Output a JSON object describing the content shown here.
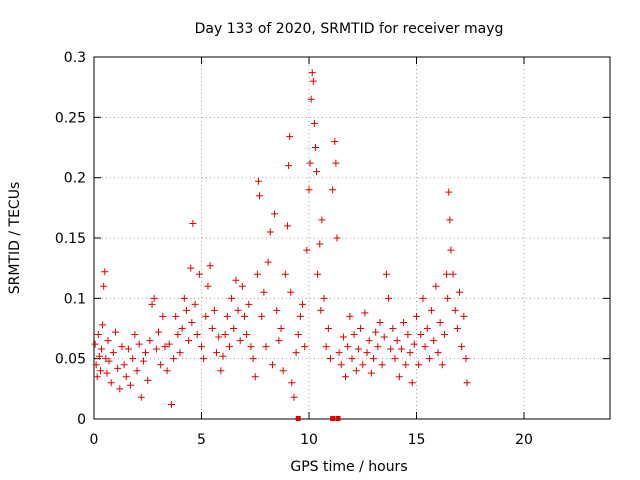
{
  "chart_data": {
    "type": "scatter",
    "title": "Day 133 of 2020, SRMTID for receiver mayg",
    "xlabel": "GPS time / hours",
    "ylabel": "SRMTID / TECUs",
    "xlim": [
      0,
      24
    ],
    "ylim": [
      0,
      0.3
    ],
    "xticks": [
      0,
      5,
      10,
      15,
      20
    ],
    "yticks": [
      0,
      0.05,
      0.1,
      0.15,
      0.2,
      0.25,
      0.3
    ],
    "grid": true,
    "marker": "+",
    "marker_color": "#e00000",
    "data_span_hours": [
      0,
      17.4
    ],
    "peaks": [
      {
        "x": 4.6,
        "y": 0.162
      },
      {
        "x": 7.6,
        "y": 0.197
      },
      {
        "x": 9.1,
        "y": 0.234
      },
      {
        "x": 10.2,
        "y": 0.287
      },
      {
        "x": 11.2,
        "y": 0.23
      },
      {
        "x": 16.5,
        "y": 0.188
      }
    ],
    "zero_markers_x": [
      9.5,
      11.1,
      11.35
    ],
    "series": [
      {
        "name": "SRMTID",
        "color": "#e00000",
        "points": [
          [
            0.05,
            0.062
          ],
          [
            0.1,
            0.045
          ],
          [
            0.15,
            0.035
          ],
          [
            0.2,
            0.07
          ],
          [
            0.25,
            0.052
          ],
          [
            0.3,
            0.04
          ],
          [
            0.35,
            0.058
          ],
          [
            0.4,
            0.078
          ],
          [
            0.45,
            0.11
          ],
          [
            0.5,
            0.122
          ],
          [
            0.55,
            0.05
          ],
          [
            0.6,
            0.038
          ],
          [
            0.65,
            0.065
          ],
          [
            0.7,
            0.048
          ],
          [
            0.8,
            0.03
          ],
          [
            0.9,
            0.055
          ],
          [
            1.0,
            0.072
          ],
          [
            1.1,
            0.042
          ],
          [
            1.2,
            0.025
          ],
          [
            1.3,
            0.06
          ],
          [
            1.4,
            0.045
          ],
          [
            1.5,
            0.035
          ],
          [
            1.6,
            0.058
          ],
          [
            1.7,
            0.028
          ],
          [
            1.8,
            0.05
          ],
          [
            1.9,
            0.07
          ],
          [
            2.0,
            0.04
          ],
          [
            2.1,
            0.062
          ],
          [
            2.2,
            0.018
          ],
          [
            2.3,
            0.048
          ],
          [
            2.4,
            0.055
          ],
          [
            2.5,
            0.032
          ],
          [
            2.6,
            0.065
          ],
          [
            2.7,
            0.095
          ],
          [
            2.8,
            0.1
          ],
          [
            2.9,
            0.058
          ],
          [
            3.0,
            0.072
          ],
          [
            3.1,
            0.045
          ],
          [
            3.2,
            0.085
          ],
          [
            3.3,
            0.06
          ],
          [
            3.4,
            0.04
          ],
          [
            3.5,
            0.062
          ],
          [
            3.6,
            0.012
          ],
          [
            3.7,
            0.05
          ],
          [
            3.8,
            0.085
          ],
          [
            3.9,
            0.07
          ],
          [
            4.0,
            0.055
          ],
          [
            4.1,
            0.075
          ],
          [
            4.2,
            0.1
          ],
          [
            4.3,
            0.09
          ],
          [
            4.4,
            0.065
          ],
          [
            4.5,
            0.125
          ],
          [
            4.55,
            0.08
          ],
          [
            4.6,
            0.162
          ],
          [
            4.7,
            0.095
          ],
          [
            4.8,
            0.07
          ],
          [
            4.9,
            0.12
          ],
          [
            5.0,
            0.06
          ],
          [
            5.1,
            0.05
          ],
          [
            5.2,
            0.085
          ],
          [
            5.3,
            0.11
          ],
          [
            5.4,
            0.127
          ],
          [
            5.5,
            0.075
          ],
          [
            5.6,
            0.09
          ],
          [
            5.7,
            0.055
          ],
          [
            5.8,
            0.068
          ],
          [
            5.9,
            0.04
          ],
          [
            6.0,
            0.052
          ],
          [
            6.1,
            0.07
          ],
          [
            6.2,
            0.085
          ],
          [
            6.3,
            0.06
          ],
          [
            6.4,
            0.1
          ],
          [
            6.5,
            0.075
          ],
          [
            6.6,
            0.115
          ],
          [
            6.7,
            0.09
          ],
          [
            6.8,
            0.065
          ],
          [
            6.9,
            0.11
          ],
          [
            7.0,
            0.085
          ],
          [
            7.1,
            0.07
          ],
          [
            7.2,
            0.095
          ],
          [
            7.3,
            0.06
          ],
          [
            7.4,
            0.05
          ],
          [
            7.5,
            0.035
          ],
          [
            7.6,
            0.12
          ],
          [
            7.65,
            0.197
          ],
          [
            7.7,
            0.185
          ],
          [
            7.8,
            0.085
          ],
          [
            7.9,
            0.105
          ],
          [
            8.0,
            0.06
          ],
          [
            8.1,
            0.13
          ],
          [
            8.2,
            0.155
          ],
          [
            8.3,
            0.045
          ],
          [
            8.4,
            0.17
          ],
          [
            8.5,
            0.09
          ],
          [
            8.6,
            0.065
          ],
          [
            8.7,
            0.075
          ],
          [
            8.8,
            0.04
          ],
          [
            8.9,
            0.12
          ],
          [
            9.0,
            0.16
          ],
          [
            9.05,
            0.21
          ],
          [
            9.1,
            0.234
          ],
          [
            9.15,
            0.105
          ],
          [
            9.2,
            0.03
          ],
          [
            9.3,
            0.018
          ],
          [
            9.4,
            0.055
          ],
          [
            9.5,
            0.07
          ],
          [
            9.6,
            0.085
          ],
          [
            9.7,
            0.095
          ],
          [
            9.8,
            0.06
          ],
          [
            9.9,
            0.14
          ],
          [
            10.0,
            0.19
          ],
          [
            10.05,
            0.212
          ],
          [
            10.1,
            0.265
          ],
          [
            10.15,
            0.287
          ],
          [
            10.2,
            0.28
          ],
          [
            10.25,
            0.245
          ],
          [
            10.3,
            0.225
          ],
          [
            10.35,
            0.205
          ],
          [
            10.4,
            0.12
          ],
          [
            10.5,
            0.145
          ],
          [
            10.55,
            0.09
          ],
          [
            10.6,
            0.165
          ],
          [
            10.7,
            0.1
          ],
          [
            10.8,
            0.06
          ],
          [
            10.9,
            0.075
          ],
          [
            11.0,
            0.05
          ],
          [
            11.1,
            0.19
          ],
          [
            11.2,
            0.23
          ],
          [
            11.25,
            0.212
          ],
          [
            11.3,
            0.15
          ],
          [
            11.4,
            0.055
          ],
          [
            11.5,
            0.045
          ],
          [
            11.6,
            0.068
          ],
          [
            11.7,
            0.035
          ],
          [
            11.8,
            0.06
          ],
          [
            11.9,
            0.085
          ],
          [
            12.0,
            0.05
          ],
          [
            12.1,
            0.07
          ],
          [
            12.2,
            0.04
          ],
          [
            12.3,
            0.058
          ],
          [
            12.4,
            0.075
          ],
          [
            12.5,
            0.045
          ],
          [
            12.6,
            0.088
          ],
          [
            12.7,
            0.055
          ],
          [
            12.8,
            0.065
          ],
          [
            12.9,
            0.038
          ],
          [
            13.0,
            0.05
          ],
          [
            13.1,
            0.072
          ],
          [
            13.2,
            0.06
          ],
          [
            13.3,
            0.08
          ],
          [
            13.4,
            0.045
          ],
          [
            13.5,
            0.068
          ],
          [
            13.6,
            0.12
          ],
          [
            13.7,
            0.1
          ],
          [
            13.8,
            0.058
          ],
          [
            13.9,
            0.075
          ],
          [
            14.0,
            0.05
          ],
          [
            14.1,
            0.065
          ],
          [
            14.2,
            0.035
          ],
          [
            14.3,
            0.058
          ],
          [
            14.4,
            0.08
          ],
          [
            14.5,
            0.045
          ],
          [
            14.6,
            0.07
          ],
          [
            14.7,
            0.055
          ],
          [
            14.8,
            0.03
          ],
          [
            14.9,
            0.062
          ],
          [
            15.0,
            0.085
          ],
          [
            15.1,
            0.045
          ],
          [
            15.2,
            0.07
          ],
          [
            15.3,
            0.1
          ],
          [
            15.4,
            0.06
          ],
          [
            15.5,
            0.075
          ],
          [
            15.6,
            0.05
          ],
          [
            15.7,
            0.09
          ],
          [
            15.8,
            0.065
          ],
          [
            15.9,
            0.11
          ],
          [
            16.0,
            0.055
          ],
          [
            16.1,
            0.08
          ],
          [
            16.2,
            0.045
          ],
          [
            16.3,
            0.07
          ],
          [
            16.4,
            0.12
          ],
          [
            16.45,
            0.1
          ],
          [
            16.5,
            0.188
          ],
          [
            16.55,
            0.165
          ],
          [
            16.6,
            0.14
          ],
          [
            16.7,
            0.12
          ],
          [
            16.8,
            0.09
          ],
          [
            16.9,
            0.075
          ],
          [
            17.0,
            0.105
          ],
          [
            17.1,
            0.06
          ],
          [
            17.2,
            0.085
          ],
          [
            17.3,
            0.05
          ],
          [
            17.35,
            0.03
          ]
        ]
      }
    ]
  }
}
